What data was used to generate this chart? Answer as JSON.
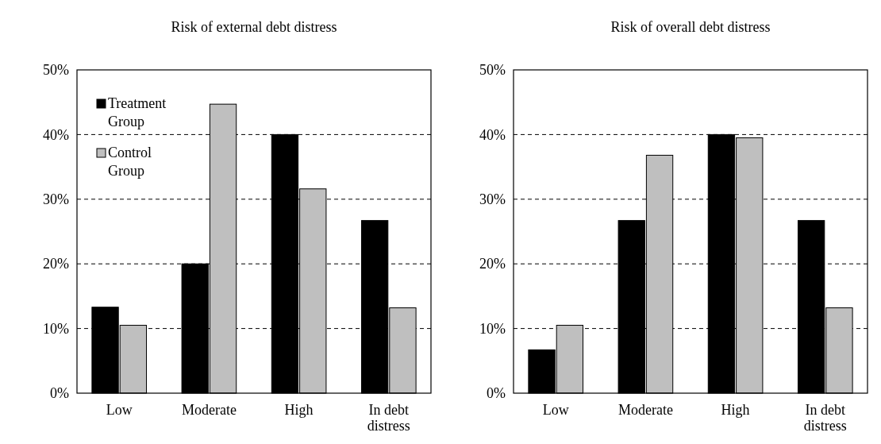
{
  "chart_data": [
    {
      "type": "bar",
      "title": "Risk of external debt distress",
      "categories": [
        "Low",
        "Moderate",
        "High",
        "In debt distress"
      ],
      "series": [
        {
          "name": "Treatment Group",
          "color": "#000000",
          "values": [
            13.3,
            20,
            40,
            26.7
          ]
        },
        {
          "name": "Control Group",
          "color": "#bfbfbf",
          "values": [
            10.5,
            44.7,
            31.6,
            13.2
          ]
        }
      ],
      "ylim": [
        0,
        50
      ],
      "yticks": [
        {
          "value": 0,
          "label": "0%"
        },
        {
          "value": 10,
          "label": "10%"
        },
        {
          "value": 20,
          "label": "20%"
        },
        {
          "value": 30,
          "label": "30%"
        },
        {
          "value": 40,
          "label": "40%"
        },
        {
          "value": 50,
          "label": "50%"
        }
      ],
      "grid": "y",
      "legend": "top left"
    },
    {
      "type": "bar",
      "title": "Risk of overall debt distress",
      "categories": [
        "Low",
        "Moderate",
        "High",
        "In debt distress"
      ],
      "series": [
        {
          "color": "#000000",
          "values": [
            6.7,
            26.7,
            40,
            26.7
          ]
        },
        {
          "color": "#bfbfbf",
          "values": [
            10.5,
            36.8,
            39.5,
            13.2
          ]
        }
      ],
      "ylim": [
        0,
        50
      ],
      "yticks": [
        {
          "value": 0,
          "label": "0%"
        },
        {
          "value": 10,
          "label": "10%"
        },
        {
          "value": 20,
          "label": "20%"
        },
        {
          "value": 30,
          "label": "30%"
        },
        {
          "value": 40,
          "label": "40%"
        },
        {
          "value": 50,
          "label": "50%"
        }
      ],
      "grid": "y"
    }
  ]
}
